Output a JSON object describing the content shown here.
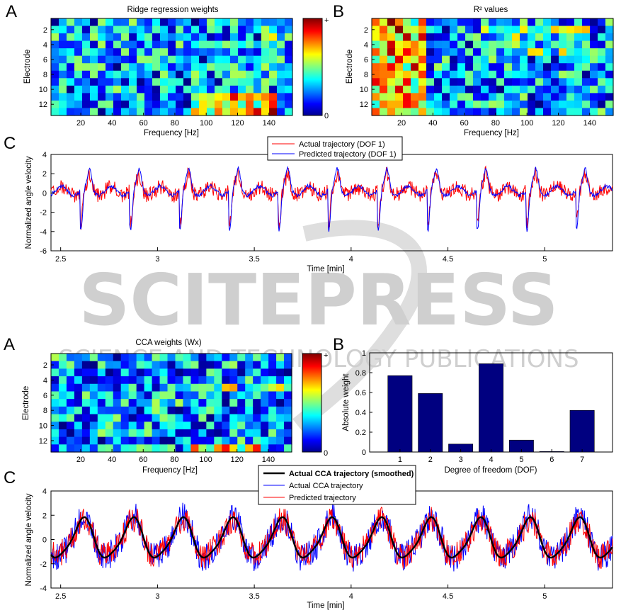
{
  "panel_labels": [
    "A",
    "B",
    "C",
    "A",
    "B",
    "C"
  ],
  "watermark": {
    "main": "SCITEPRESS",
    "sub": "SCIENCE AND TECHNOLOGY PUBLICATIONS"
  },
  "colorbar_labels": {
    "max": "+",
    "min": "0"
  },
  "chart_data": [
    {
      "id": "top-A",
      "type": "heatmap",
      "title": "Ridge regression weights",
      "xlabel": "Frequency [Hz]",
      "ylabel": "Electrode",
      "xticks": [
        20,
        40,
        60,
        80,
        100,
        120,
        140
      ],
      "yticks": [
        2,
        4,
        6,
        8,
        10,
        12
      ],
      "xlim": [
        1,
        155
      ],
      "n_rows": 13,
      "n_cols": 31,
      "colormap": "jet",
      "colorbar": true
    },
    {
      "id": "top-B",
      "type": "heatmap",
      "title": "R² values",
      "xlabel": "Frequency [Hz]",
      "ylabel": "Electrode",
      "xticks": [
        20,
        40,
        60,
        80,
        100,
        120,
        140
      ],
      "yticks": [
        2,
        4,
        6,
        8,
        10,
        12
      ],
      "xlim": [
        1,
        155
      ],
      "n_rows": 13,
      "n_cols": 31,
      "colormap": "jet",
      "colorbar": false
    },
    {
      "id": "top-C",
      "type": "line",
      "xlabel": "Time [min]",
      "ylabel": "Normalized angle velocity",
      "xlim": [
        2.45,
        5.35
      ],
      "ylim": [
        -6,
        4
      ],
      "xticks": [
        2.5,
        3,
        3.5,
        4,
        4.5,
        5
      ],
      "yticks": [
        -6,
        -4,
        -2,
        0,
        2,
        4
      ],
      "legend_position": "top",
      "series": [
        {
          "name": "Actual trajectory (DOF 1)",
          "color": "#ff0000"
        },
        {
          "name": "Predicted trajectory (DOF 1)",
          "color": "#0000ff"
        }
      ]
    },
    {
      "id": "bottom-A",
      "type": "heatmap",
      "title": "CCA weights (Wx)",
      "xlabel": "Frequency [Hz]",
      "ylabel": "Electrode",
      "xticks": [
        20,
        40,
        60,
        80,
        100,
        120,
        140
      ],
      "yticks": [
        2,
        4,
        6,
        8,
        10,
        12
      ],
      "xlim": [
        1,
        155
      ],
      "n_rows": 13,
      "n_cols": 31,
      "colormap": "jet",
      "colorbar": true
    },
    {
      "id": "bottom-B",
      "type": "bar",
      "xlabel": "Degree of freedom (DOF)",
      "ylabel": "Absolute weight",
      "categories": [
        "1",
        "2",
        "3",
        "4",
        "5",
        "6",
        "7"
      ],
      "values": [
        0.77,
        0.59,
        0.08,
        0.89,
        0.12,
        0.005,
        0.42
      ],
      "ylim": [
        0,
        1
      ],
      "yticks": [
        0,
        0.2,
        0.4,
        0.6,
        0.8,
        1
      ],
      "bar_color": "#000080"
    },
    {
      "id": "bottom-C",
      "type": "line",
      "xlabel": "Time [min]",
      "ylabel": "Normalized angle velocity",
      "xlim": [
        2.45,
        5.35
      ],
      "ylim": [
        -4,
        4
      ],
      "xticks": [
        2.5,
        3,
        3.5,
        4,
        4.5,
        5
      ],
      "yticks": [
        -4,
        -2,
        0,
        2,
        4
      ],
      "legend_position": "top",
      "series": [
        {
          "name": "Actual CCA trajectory (smoothed)",
          "color": "#000000"
        },
        {
          "name": "Actual CCA trajectory",
          "color": "#0000ff"
        },
        {
          "name": "Predicted trajectory",
          "color": "#ff0000"
        }
      ]
    }
  ]
}
